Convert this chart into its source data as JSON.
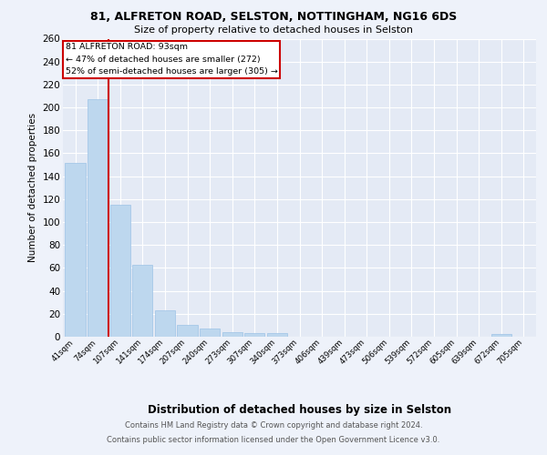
{
  "title1": "81, ALFRETON ROAD, SELSTON, NOTTINGHAM, NG16 6DS",
  "title2": "Size of property relative to detached houses in Selston",
  "xlabel": "Distribution of detached houses by size in Selston",
  "ylabel": "Number of detached properties",
  "categories": [
    "41sqm",
    "74sqm",
    "107sqm",
    "141sqm",
    "174sqm",
    "207sqm",
    "240sqm",
    "273sqm",
    "307sqm",
    "340sqm",
    "373sqm",
    "406sqm",
    "439sqm",
    "473sqm",
    "506sqm",
    "539sqm",
    "572sqm",
    "605sqm",
    "639sqm",
    "672sqm",
    "705sqm"
  ],
  "values": [
    152,
    207,
    115,
    63,
    23,
    10,
    7,
    4,
    3,
    3,
    0,
    0,
    0,
    0,
    0,
    0,
    0,
    0,
    0,
    2,
    0
  ],
  "bar_color": "#bdd7ee",
  "bar_edge_color": "#9dc3e6",
  "reference_line_label": "81 ALFRETON ROAD: 93sqm",
  "annotation_line1": "← 47% of detached houses are smaller (272)",
  "annotation_line2": "52% of semi-detached houses are larger (305) →",
  "annotation_box_edge": "#cc0000",
  "reference_line_color": "#cc0000",
  "ylim": [
    0,
    260
  ],
  "yticks": [
    0,
    20,
    40,
    60,
    80,
    100,
    120,
    140,
    160,
    180,
    200,
    220,
    240,
    260
  ],
  "footer1": "Contains HM Land Registry data © Crown copyright and database right 2024.",
  "footer2": "Contains public sector information licensed under the Open Government Licence v3.0.",
  "bg_color": "#eef2fa",
  "plot_bg_color": "#e4eaf5"
}
